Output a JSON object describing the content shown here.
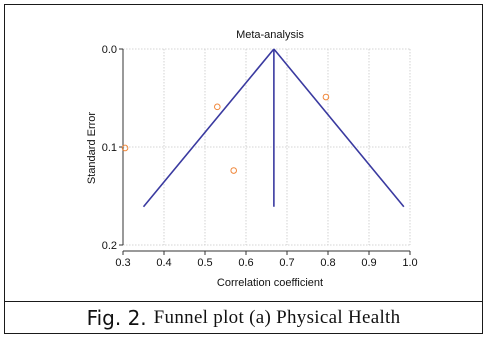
{
  "chart_data": {
    "type": "scatter",
    "title": "Meta-analysis",
    "xlabel": "Correlation coefficient",
    "ylabel": "Standard Error",
    "xlim": [
      0.3,
      1.0
    ],
    "ylim": [
      0.0,
      0.2
    ],
    "y_axis_inverted": true,
    "x_ticks": [
      "0.3",
      "0.4",
      "0.5",
      "0.6",
      "0.7",
      "0.8",
      "0.9",
      "1.0"
    ],
    "y_ticks": [
      "0.0",
      "0.1",
      "0.2"
    ],
    "grid": true,
    "points": [
      {
        "x": 0.305,
        "y": 0.101
      },
      {
        "x": 0.53,
        "y": 0.059
      },
      {
        "x": 0.57,
        "y": 0.124
      },
      {
        "x": 0.795,
        "y": 0.049
      }
    ],
    "funnel_apex": {
      "x": 0.668,
      "y": 0.0
    },
    "funnel_left_base": {
      "x": 0.35,
      "y": 0.161
    },
    "funnel_right_base": {
      "x": 0.985,
      "y": 0.161
    },
    "center_line_x": 0.668,
    "colors": {
      "point": "#f0883c",
      "funnel": "#3a3aa0",
      "grid": "#c8c8c8",
      "axis": "#333333"
    }
  },
  "caption": {
    "label": "Fig. 2.",
    "text": "Funnel plot (a) Physical Health"
  }
}
